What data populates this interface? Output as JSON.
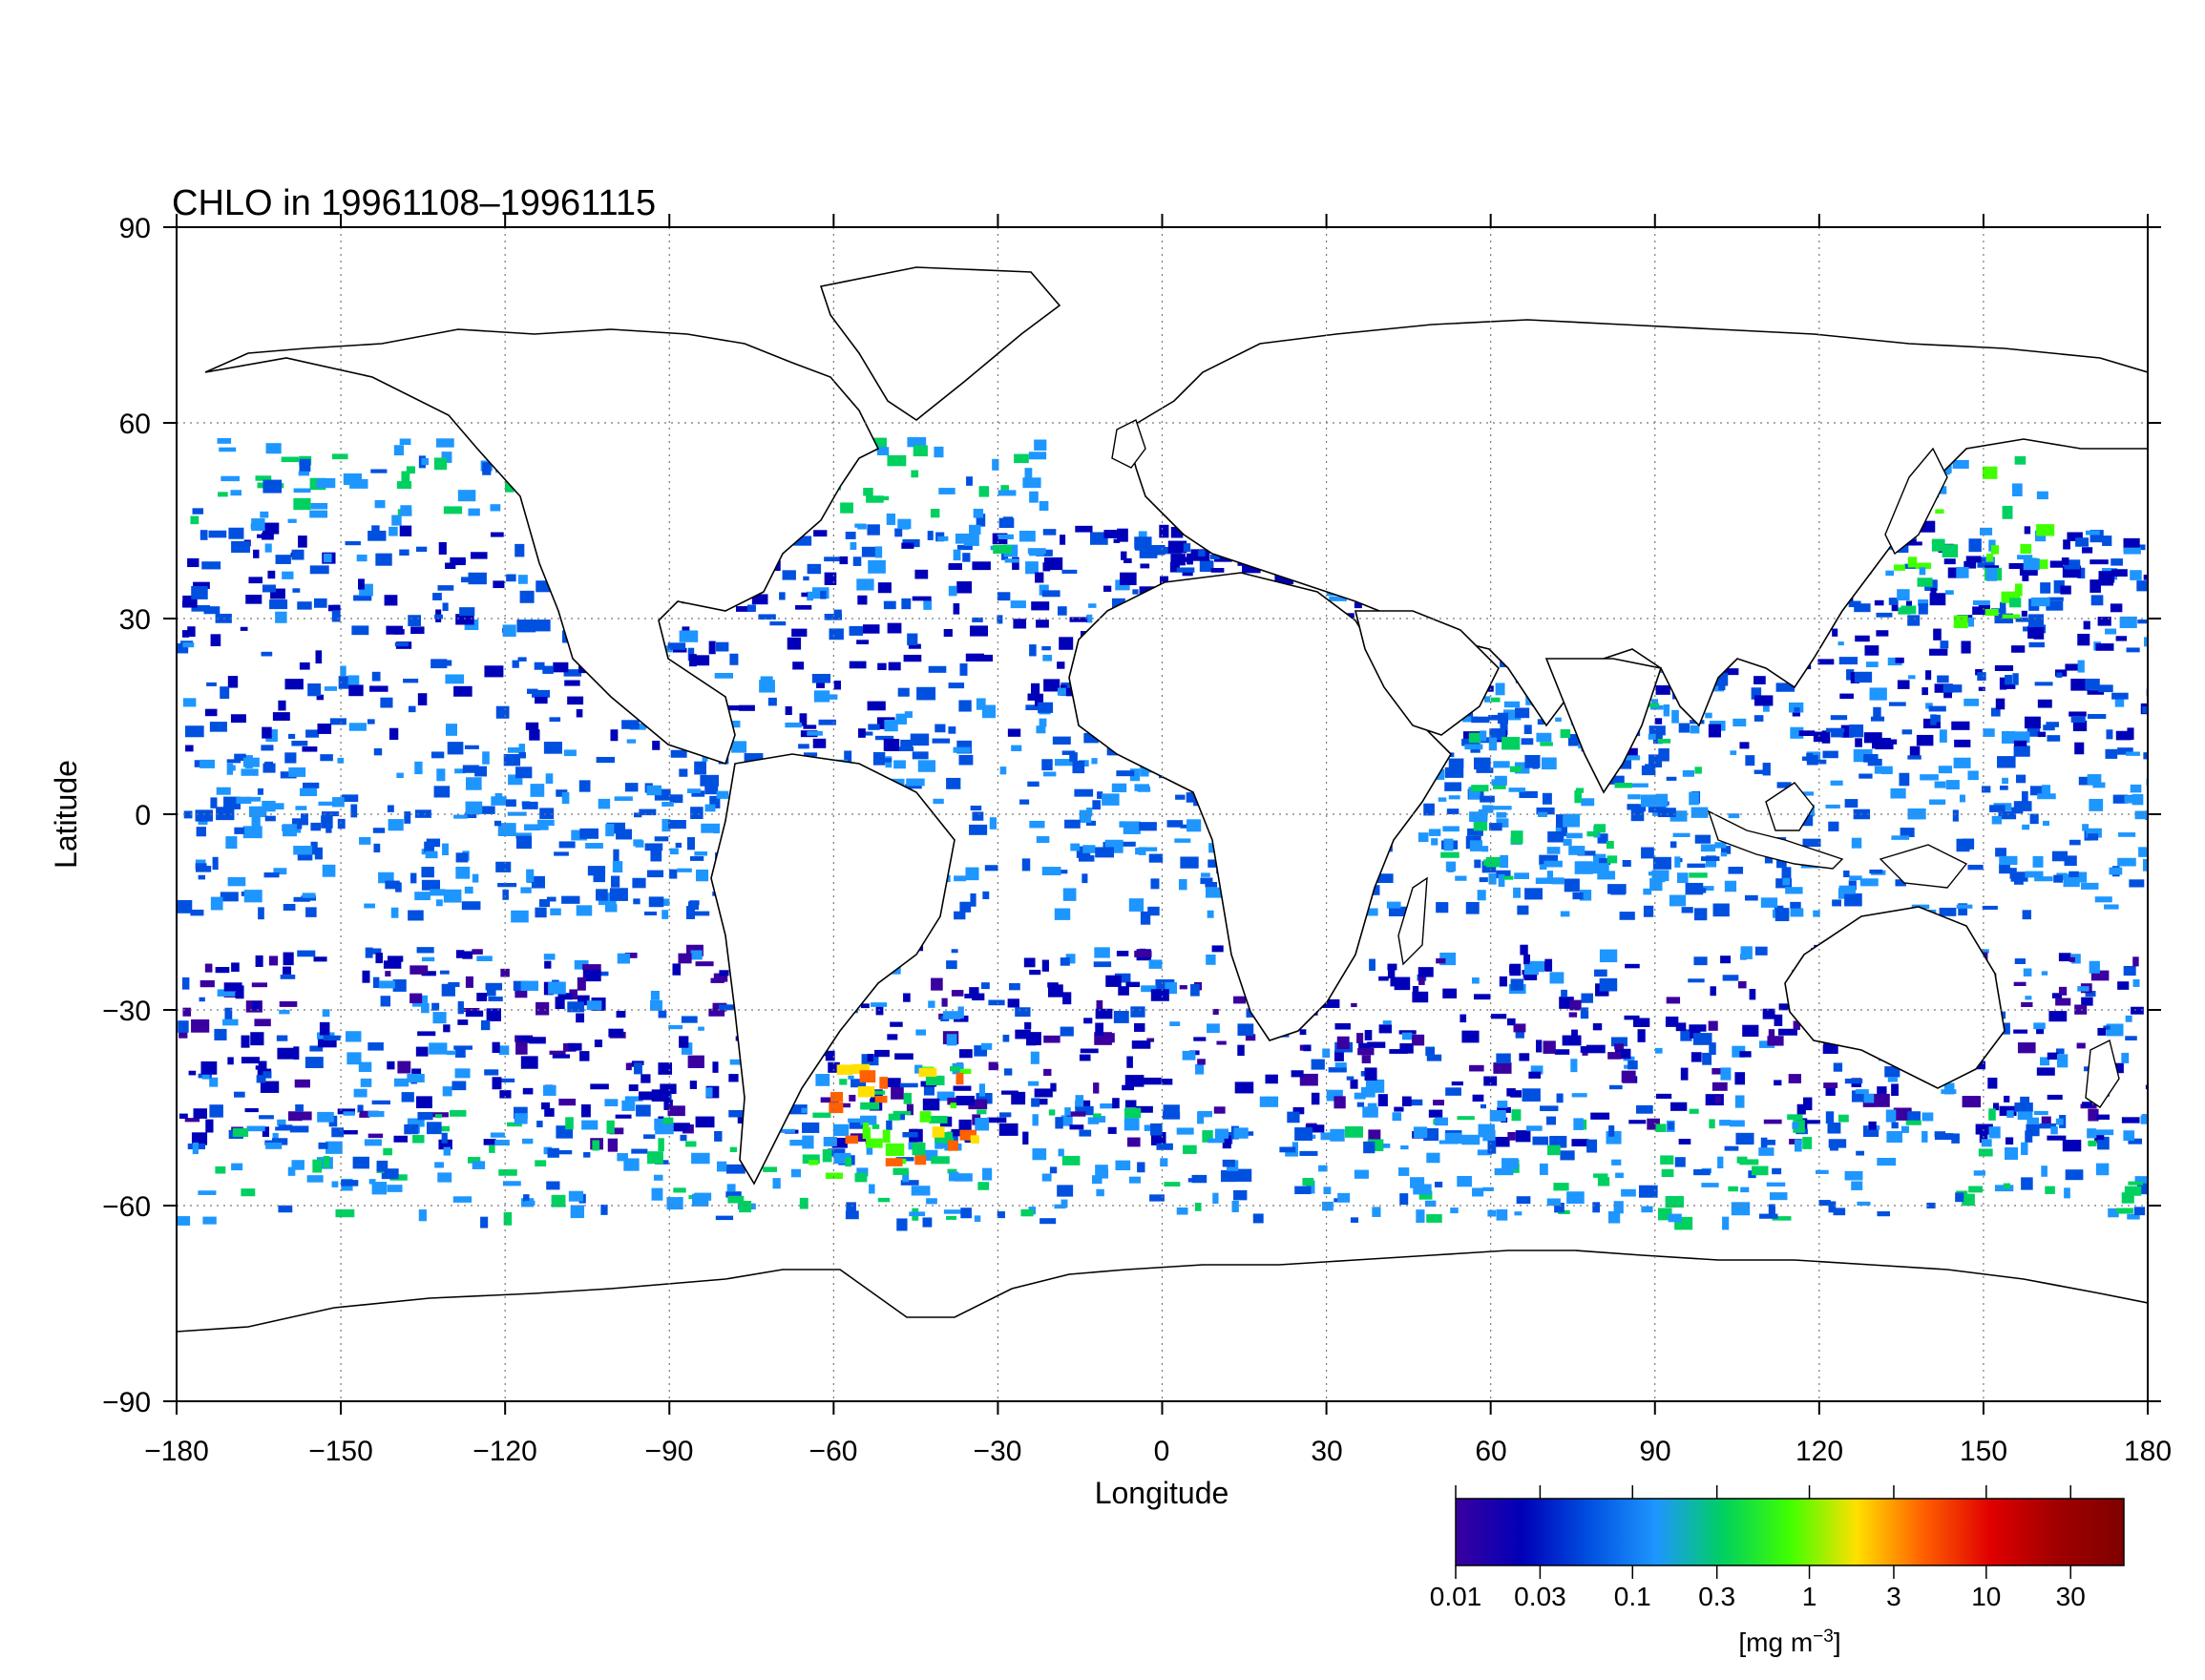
{
  "title": "CHLO in 19961108–19961115",
  "xlabel": "Longitude",
  "ylabel": "Latitude",
  "x_ticks": [
    "−180",
    "−150",
    "−120",
    "−90",
    "−60",
    "−30",
    "0",
    "30",
    "60",
    "90",
    "120",
    "150",
    "180"
  ],
  "y_ticks": [
    "90",
    "60",
    "30",
    "0",
    "−30",
    "−60",
    "−90"
  ],
  "colorbar": {
    "unit_prefix": "[mg m",
    "unit_exp": "−3",
    "unit_suffix": "]",
    "tick_labels": [
      "0.01",
      "0.03",
      "0.1",
      "0.3",
      "1",
      "3",
      "10",
      "30"
    ],
    "tick_values": [
      0.01,
      0.03,
      0.1,
      0.3,
      1,
      3,
      10,
      30
    ],
    "range": [
      0.01,
      60
    ],
    "scale": "log",
    "colors": [
      "#3a00a0",
      "#0000b8",
      "#0050e0",
      "#1e96ff",
      "#00d060",
      "#40ff00",
      "#ffe000",
      "#ff6000",
      "#e00000",
      "#a00000",
      "#800000"
    ]
  },
  "map_data": {
    "projection": "equirectangular",
    "lon_range": [
      -180,
      180
    ],
    "lat_range": [
      -90,
      90
    ],
    "grid": "dotted",
    "no_data_color": "#ffffff",
    "land_color": "#ffffff",
    "coast_color": "#000000"
  }
}
